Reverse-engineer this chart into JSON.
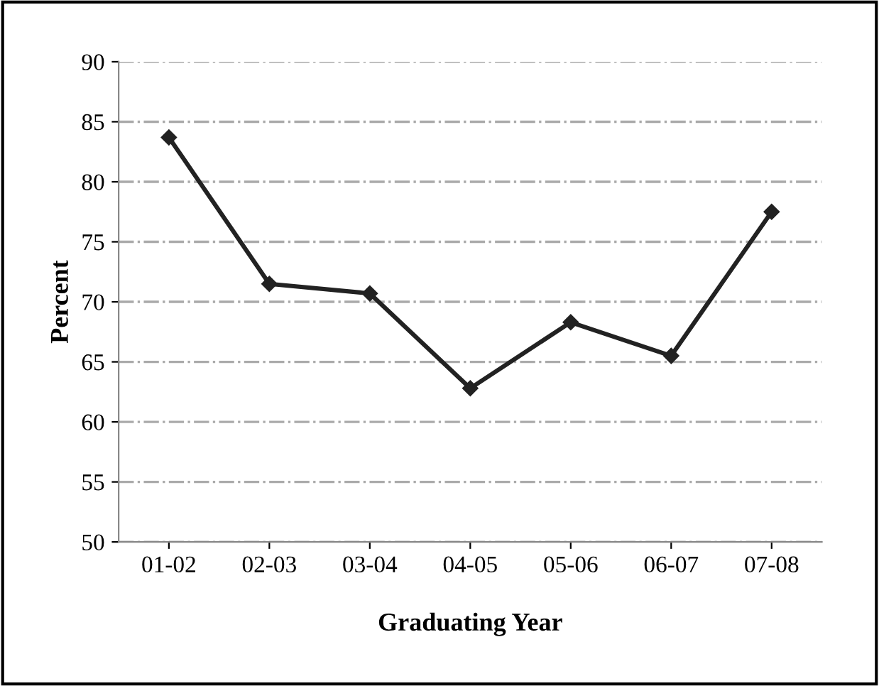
{
  "chart_data": {
    "type": "line",
    "xlabel": "Graduating Year",
    "ylabel": "Percent",
    "categories": [
      "01-02",
      "02-03",
      "03-04",
      "04-05",
      "05-06",
      "06-07",
      "07-08"
    ],
    "series": [
      {
        "color": "#222222",
        "values": [
          83.7,
          71.5,
          70.7,
          62.8,
          68.3,
          65.5,
          77.5
        ]
      }
    ],
    "ylim": [
      50,
      90
    ],
    "yticks": [
      50,
      55,
      60,
      65,
      70,
      75,
      80,
      85,
      90
    ],
    "grid": "y",
    "marker": "diamond",
    "line_style": "solid",
    "legend": false
  }
}
